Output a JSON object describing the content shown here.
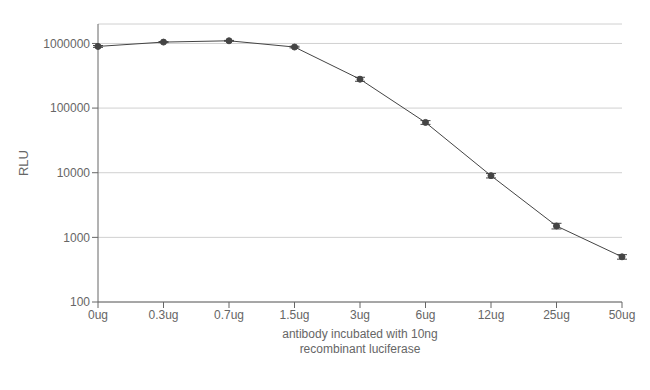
{
  "chart_data": {
    "type": "line",
    "categories": [
      "0ug",
      "0.3ug",
      "0.7ug",
      "1.5ug",
      "3ug",
      "6ug",
      "12ug",
      "25ug",
      "50ug"
    ],
    "values": [
      900000,
      1050000,
      1100000,
      880000,
      280000,
      60000,
      9000,
      1500,
      500
    ],
    "errors": [
      30000,
      20000,
      15000,
      25000,
      20000,
      4000,
      700,
      150,
      40
    ],
    "x_label": "antibody incubated with 10ng\nrecombinant luciferase",
    "y_label": "RLU",
    "log": "y",
    "ylim": [
      100,
      2000000
    ],
    "yticks": [
      100,
      1000,
      10000,
      100000,
      1000000
    ],
    "color": "#444444",
    "marker": "o",
    "line_style": "solid",
    "grid": true
  }
}
